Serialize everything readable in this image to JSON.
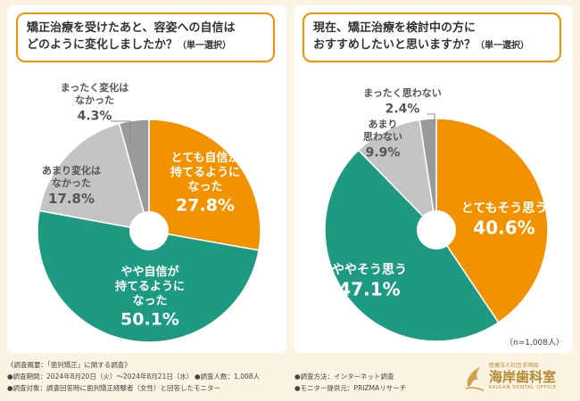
{
  "chart_data": [
    {
      "type": "pie",
      "title": "矯正治療を受けたあと、容姿への自信はどのように変化しましたか？",
      "subtitle": "（単一選択）",
      "series": [
        {
          "label": "とても自信が持てるようになった",
          "value": 27.8,
          "color": "#f39200"
        },
        {
          "label": "やや自信が持てるようになった",
          "value": 50.1,
          "color": "#1f9a82"
        },
        {
          "label": "あまり変化はなかった",
          "value": 17.8,
          "color": "#c4c4c4"
        },
        {
          "label": "まったく変化はなかった",
          "value": 4.3,
          "color": "#9a9a9a"
        }
      ]
    },
    {
      "type": "pie",
      "title": "現在、矯正治療を検討中の方におすすめしたいと思いますか？",
      "subtitle": "（単一選択）",
      "sample_size": "（n=1,008人）",
      "series": [
        {
          "label": "とてもそう思う",
          "value": 40.6,
          "color": "#f39200"
        },
        {
          "label": "ややそう思う",
          "value": 47.1,
          "color": "#1f9a82"
        },
        {
          "label": "あまり思わない",
          "value": 9.9,
          "color": "#c4c4c4"
        },
        {
          "label": "まったく思わない",
          "value": 2.4,
          "color": "#9a9a9a"
        }
      ]
    }
  ],
  "panel1": {
    "title_line1": "矯正治療を受けたあと、容姿への自信は",
    "title_line2": "どのように変化しましたか？",
    "subtitle": "（単一選択）",
    "labels": [
      {
        "lines": [
          "とても自信が",
          "持てるように",
          "なった"
        ],
        "pct": "27.8%"
      },
      {
        "lines": [
          "やや自信が",
          "持てるように",
          "なった"
        ],
        "pct": "50.1%"
      },
      {
        "lines": [
          "あまり変化は",
          "なかった"
        ],
        "pct": "17.8%"
      },
      {
        "lines": [
          "まったく変化は",
          "なかった"
        ],
        "pct": "4.3%"
      }
    ]
  },
  "panel2": {
    "title_line1": "現在、矯正治療を検討中の方に",
    "title_line2": "おすすめしたいと思いますか？",
    "subtitle": "（単一選択）",
    "sample": "（n=1,008人）",
    "labels": [
      {
        "lines": [
          "とてもそう思う"
        ],
        "pct": "40.6%"
      },
      {
        "lines": [
          "ややそう思う"
        ],
        "pct": "47.1%"
      },
      {
        "lines": [
          "あまり",
          "思わない"
        ],
        "pct": "9.9%"
      },
      {
        "lines": [
          "まったく思わない"
        ],
        "pct": "2.4%"
      }
    ]
  },
  "footer": {
    "heading": "《調査概要：「歯列矯正」に関する調査》",
    "period": "●調査期間：2024年8月20日（火）～2024年8月21日（水）",
    "count": "●調査人数：1,008人",
    "method": "●調査方法：インターネット調査",
    "target": "●調査対象：調査回答時に歯列矯正経験者（女性）と回答したモニター",
    "provider": "●モニター提供元：PRIZMAリサーチ"
  },
  "logo": {
    "org": "医療法人社団 彩翔会",
    "name": "海岸歯科室",
    "en": "KAIGAN DENTAL OFFICE"
  }
}
